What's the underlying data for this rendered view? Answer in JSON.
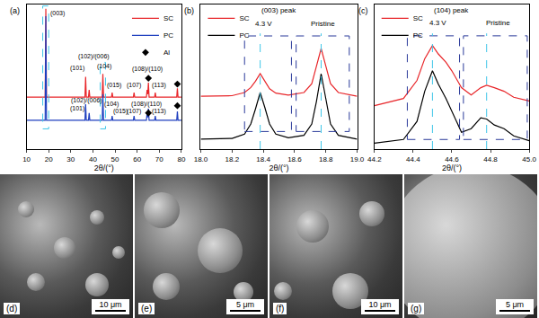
{
  "chart_data": [
    {
      "type": "line",
      "label": "(a)",
      "x_label": "2θ/(°)",
      "xlim": [
        10,
        80
      ],
      "xticks": [
        10,
        20,
        30,
        40,
        50,
        60,
        70,
        80
      ],
      "ylim": [
        0,
        100
      ],
      "tick_labels": "x",
      "legend": "upper right",
      "series": [
        {
          "name": "SC",
          "type": "line",
          "color": "#e8262a",
          "x": [
            10,
            18.4,
            18.7,
            19.0,
            36.4,
            36.7,
            37.0,
            38.0,
            38.3,
            38.6,
            44.2,
            44.5,
            44.8,
            48.4,
            48.7,
            49.0,
            58.3,
            58.6,
            58.9,
            64.2,
            64.5,
            64.8,
            65.1,
            65.4,
            67.9,
            68.2,
            68.5,
            77.9,
            78.2,
            78.5,
            80
          ],
          "values": [
            36,
            36,
            97,
            36,
            36,
            50,
            36,
            36,
            41,
            36,
            36,
            52,
            36,
            36,
            39,
            36,
            36,
            39,
            36,
            36,
            41,
            38,
            46,
            36,
            36,
            39,
            36,
            36,
            42,
            36,
            36
          ]
        },
        {
          "name": "PC",
          "type": "line",
          "color": "#1f3fbf",
          "x": [
            10,
            18.4,
            18.7,
            19.0,
            36.4,
            36.7,
            37.0,
            38.0,
            38.3,
            38.6,
            44.2,
            44.5,
            44.8,
            48.4,
            48.7,
            49.0,
            58.3,
            58.6,
            58.9,
            64.2,
            64.5,
            64.8,
            65.1,
            65.4,
            67.9,
            68.2,
            68.5,
            77.9,
            78.2,
            78.5,
            80
          ],
          "values": [
            20,
            20,
            92,
            20,
            20,
            31,
            20,
            20,
            25,
            20,
            20,
            38,
            20,
            20,
            23,
            20,
            20,
            23,
            20,
            20,
            25,
            22,
            28,
            20,
            20,
            23,
            20,
            20,
            26,
            20,
            20
          ]
        },
        {
          "name": "Al",
          "type": "scatter",
          "marker": "diamond",
          "color": "#000000",
          "x": [
            65.1,
            78.2,
            65.1,
            78.2
          ],
          "values": [
            49,
            45,
            25,
            30
          ]
        }
      ],
      "annotations": [
        {
          "text": "(003)",
          "x": 24,
          "y": 94
        },
        {
          "text": "(101)",
          "x": 33,
          "y": 56
        },
        {
          "text": "(102)/(006)",
          "x": 40.5,
          "y": 64
        },
        {
          "text": "(104)",
          "x": 45,
          "y": 57
        },
        {
          "text": "(015)",
          "x": 49.5,
          "y": 44
        },
        {
          "text": "(107)",
          "x": 58.6,
          "y": 44
        },
        {
          "text": "(108)/(110)",
          "x": 64.8,
          "y": 55
        },
        {
          "text": "(113)",
          "x": 70,
          "y": 44
        },
        {
          "text": "(101)",
          "x": 33,
          "y": 28
        },
        {
          "text": "(102)/(006)",
          "x": 37.2,
          "y": 33.8
        },
        {
          "text": "(104)",
          "x": 48.5,
          "y": 31
        },
        {
          "text": "(015)",
          "x": 52.5,
          "y": 26
        },
        {
          "text": "(107)",
          "x": 58.6,
          "y": 26
        },
        {
          "text": "(108)/(110)",
          "x": 64,
          "y": 31
        },
        {
          "text": "(113)",
          "x": 70,
          "y": 26
        }
      ],
      "highlight_boxes": [
        {
          "x": [
            17.3,
            20
          ],
          "y": [
            14,
            99
          ]
        },
        {
          "x": [
            43.3,
            45.7
          ],
          "y": [
            14,
            60
          ]
        }
      ]
    },
    {
      "type": "line",
      "label": "(b)",
      "title": "(003) peak",
      "x_label": "2θ/(°)",
      "xlim": [
        18.0,
        19.0
      ],
      "xticks": [
        {
          "value": 18,
          "label": "18.0"
        },
        18.2,
        18.4,
        18.6,
        18.8,
        {
          "value": 19,
          "label": "19.0"
        }
      ],
      "ylim": [
        0,
        115
      ],
      "tick_labels": "x",
      "legend": "upper left",
      "series": [
        {
          "name": "SC",
          "type": "line",
          "color": "#e8262a",
          "x": [
            18.0,
            18.2,
            18.28,
            18.32,
            18.35,
            18.38,
            18.41,
            18.44,
            18.48,
            18.56,
            18.66,
            18.71,
            18.74,
            18.77,
            18.8,
            18.83,
            18.88,
            19.0
          ],
          "values": [
            42,
            42.5,
            45,
            49,
            54,
            60,
            54,
            48,
            44.5,
            43,
            45,
            52,
            66,
            80,
            66,
            52,
            45,
            42
          ]
        },
        {
          "name": "PC",
          "type": "line",
          "color": "#000000",
          "x": [
            18.0,
            18.2,
            18.28,
            18.32,
            18.35,
            18.38,
            18.41,
            18.44,
            18.48,
            18.56,
            18.66,
            18.71,
            18.74,
            18.77,
            18.8,
            18.83,
            18.88,
            19.0
          ],
          "values": [
            8,
            8.5,
            12,
            20,
            32,
            45,
            33,
            20,
            12,
            9,
            11,
            20,
            38,
            60,
            40,
            20,
            11,
            8
          ]
        }
      ],
      "annotations": [
        {
          "text": "4.3 V",
          "x": 18.4,
          "y": 100
        },
        {
          "text": "Pristine",
          "x": 18.78,
          "y": 100
        }
      ],
      "vlines": [
        18.38,
        18.77
      ],
      "highlight_boxes": [
        {
          "x": [
            18.28,
            18.58
          ],
          "y": [
            14,
            90
          ]
        },
        {
          "x": [
            18.61,
            18.95
          ],
          "y": [
            14,
            90
          ]
        }
      ]
    },
    {
      "type": "line",
      "label": "(c)",
      "title": "(104) peak",
      "x_label": "2θ/(°)",
      "xlim": [
        44.2,
        45.0
      ],
      "xticks": [
        44.2,
        44.4,
        44.6,
        44.8,
        {
          "value": 45,
          "label": "45.0"
        }
      ],
      "ylim": [
        0,
        120
      ],
      "tick_labels": "x",
      "legend": "upper left",
      "series": [
        {
          "name": "SC",
          "type": "line",
          "color": "#e8262a",
          "x": [
            44.2,
            44.35,
            44.42,
            44.46,
            44.5,
            44.53,
            44.57,
            44.6,
            44.65,
            44.7,
            44.75,
            44.78,
            44.82,
            44.87,
            44.92,
            45.0
          ],
          "values": [
            36,
            42,
            57,
            75,
            86,
            79,
            72,
            65,
            51,
            45,
            51,
            53,
            51,
            48,
            43,
            40
          ]
        },
        {
          "name": "PC",
          "type": "line",
          "color": "#000000",
          "x": [
            44.2,
            44.35,
            44.42,
            44.46,
            44.5,
            44.53,
            44.57,
            44.6,
            44.65,
            44.7,
            44.75,
            44.78,
            44.82,
            44.87,
            44.92,
            45.0
          ],
          "values": [
            5,
            8,
            23,
            48,
            65,
            54,
            42,
            31,
            14,
            17,
            26,
            25,
            20,
            17,
            11,
            7
          ]
        }
      ],
      "annotations": [
        {
          "text": "4.3 V",
          "x": 44.53,
          "y": 105
        },
        {
          "text": "Pristine",
          "x": 44.84,
          "y": 105
        }
      ],
      "vlines": [
        44.5,
        44.78
      ],
      "highlight_boxes": [
        {
          "x": [
            44.37,
            44.64
          ],
          "y": [
            8,
            94
          ]
        },
        {
          "x": [
            44.66,
            44.99
          ],
          "y": [
            8,
            94
          ]
        }
      ]
    }
  ],
  "images": [
    {
      "label": "(d)",
      "scale_bar": "10 μm"
    },
    {
      "label": "(e)",
      "scale_bar": "5 μm"
    },
    {
      "label": "(f)",
      "scale_bar": "10 μm"
    },
    {
      "label": "(g)",
      "scale_bar": "5 μm"
    }
  ]
}
